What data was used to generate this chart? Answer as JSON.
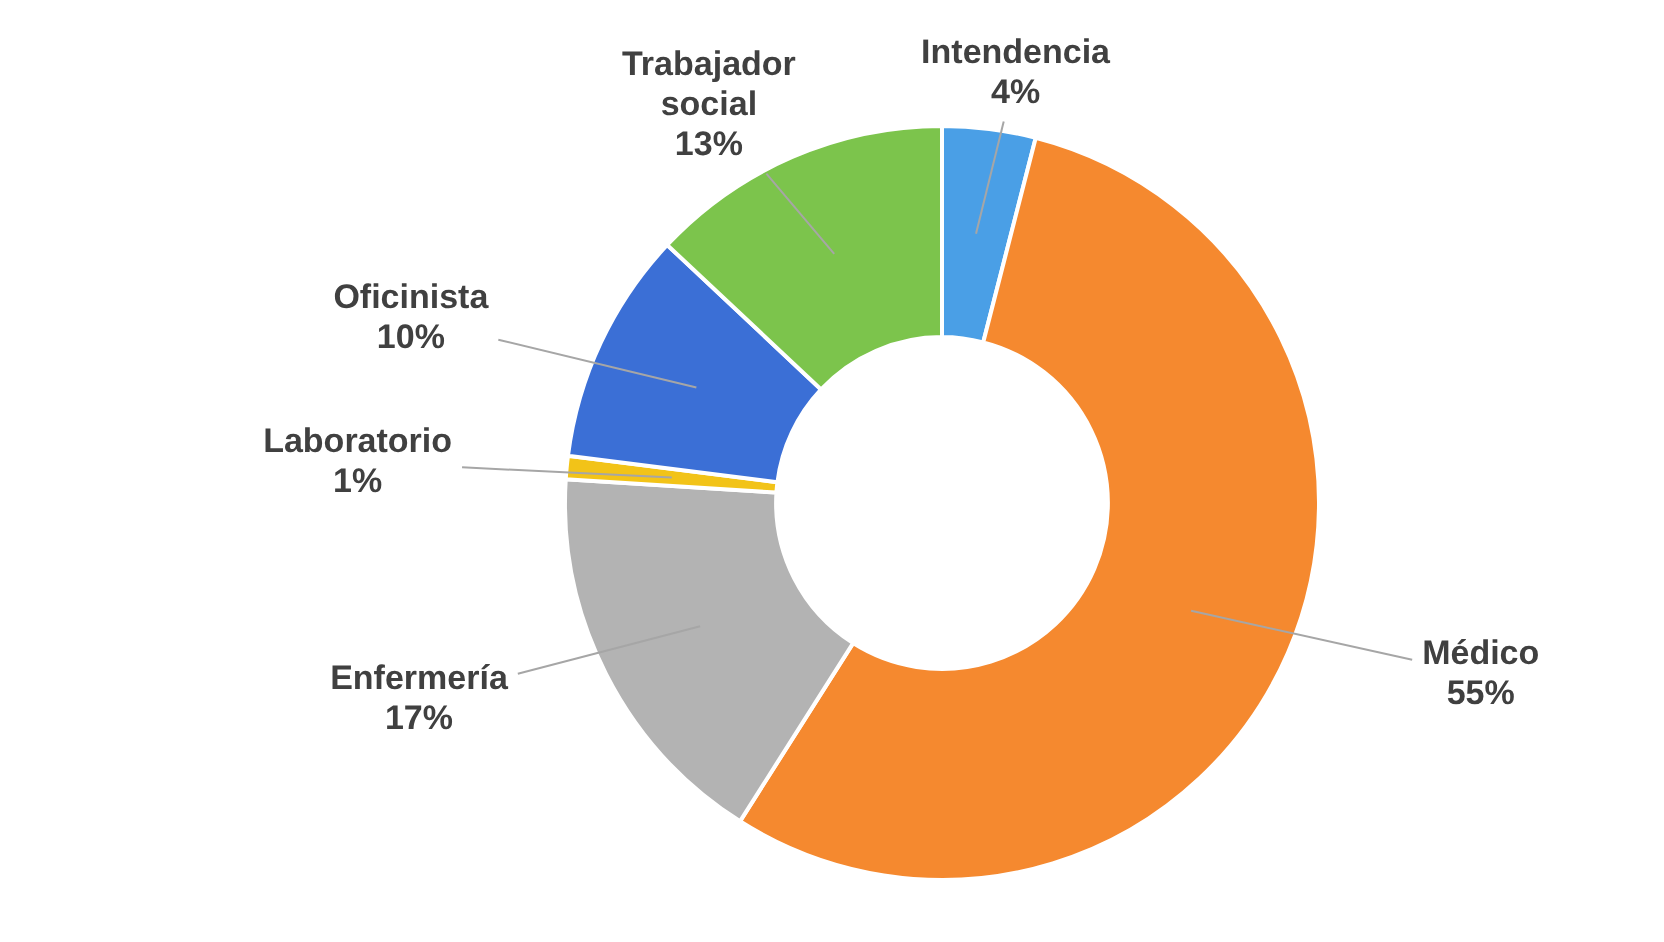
{
  "chart_data": {
    "type": "donut",
    "categories": [
      "Intendencia",
      "Médico",
      "Enfermería",
      "Laboratorio",
      "Oficinista",
      "Trabajador social"
    ],
    "values": [
      4,
      55,
      17,
      1,
      10,
      13
    ],
    "value_labels": [
      "4%",
      "55%",
      "17%",
      "1%",
      "10%",
      "13%"
    ],
    "colors": [
      "#4a9fe6",
      "#f5892f",
      "#b3b3b3",
      "#f2c318",
      "#3b6fd6",
      "#7cc44c"
    ],
    "legend": false
  }
}
